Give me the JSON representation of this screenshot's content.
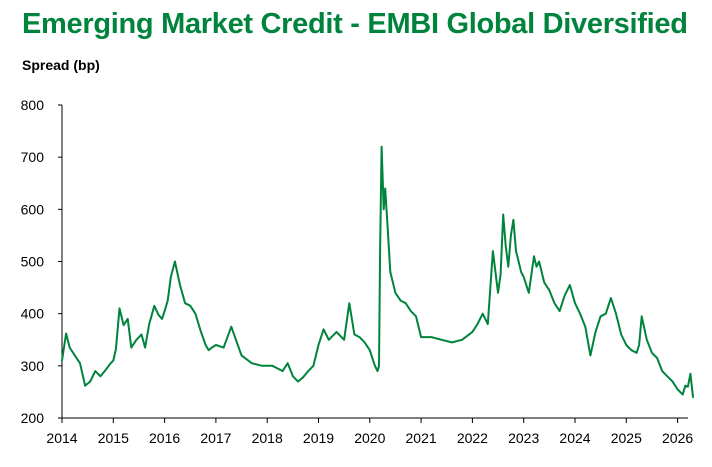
{
  "chart_data": {
    "type": "line",
    "title": "Emerging Market Credit - EMBI Global Diversified",
    "ylabel": "Spread (bp)",
    "xlabel": "",
    "xlim": [
      2014.0,
      2026.35
    ],
    "ylim": [
      200,
      800
    ],
    "yticks": [
      "200",
      "300",
      "400",
      "500",
      "600",
      "700",
      "800"
    ],
    "xticks": [
      "2014",
      "2015",
      "2016",
      "2017",
      "2018",
      "2019",
      "2020",
      "2021",
      "2022",
      "2023",
      "2024",
      "2025",
      "2026"
    ],
    "grid": false,
    "legend": "none",
    "series_color": "#00843D",
    "x": [
      2014.0,
      2014.08,
      2014.15,
      2014.25,
      2014.35,
      2014.45,
      2014.55,
      2014.65,
      2014.75,
      2014.85,
      2014.95,
      2015.0,
      2015.05,
      2015.12,
      2015.2,
      2015.28,
      2015.35,
      2015.45,
      2015.55,
      2015.62,
      2015.7,
      2015.8,
      2015.88,
      2015.95,
      2016.0,
      2016.06,
      2016.12,
      2016.2,
      2016.3,
      2016.4,
      2016.5,
      2016.6,
      2016.7,
      2016.8,
      2016.86,
      2016.92,
      2017.0,
      2017.15,
      2017.3,
      2017.5,
      2017.7,
      2017.9,
      2018.0,
      2018.1,
      2018.2,
      2018.3,
      2018.4,
      2018.5,
      2018.6,
      2018.7,
      2018.8,
      2018.9,
      2019.0,
      2019.1,
      2019.2,
      2019.35,
      2019.5,
      2019.6,
      2019.7,
      2019.8,
      2019.9,
      2020.0,
      2020.1,
      2020.15,
      2020.18,
      2020.2,
      2020.23,
      2020.27,
      2020.3,
      2020.35,
      2020.4,
      2020.5,
      2020.6,
      2020.7,
      2020.8,
      2020.9,
      2021.0,
      2021.2,
      2021.4,
      2021.6,
      2021.8,
      2022.0,
      2022.1,
      2022.2,
      2022.3,
      2022.4,
      2022.5,
      2022.55,
      2022.6,
      2022.65,
      2022.7,
      2022.75,
      2022.8,
      2022.85,
      2022.9,
      2022.95,
      2023.0,
      2023.1,
      2023.2,
      2023.25,
      2023.3,
      2023.4,
      2023.5,
      2023.6,
      2023.7,
      2023.8,
      2023.9,
      2024.0,
      2024.1,
      2024.2,
      2024.3,
      2024.4,
      2024.5,
      2024.6,
      2024.7,
      2024.8,
      2024.9,
      2025.0,
      2025.1,
      2025.2,
      2025.25,
      2025.3,
      2025.4,
      2025.5,
      2025.6,
      2025.7,
      2025.8,
      2025.9,
      2026.0,
      2026.1,
      2026.15,
      2026.2,
      2026.25,
      2026.3
    ],
    "y": [
      310,
      362,
      335,
      320,
      305,
      262,
      270,
      290,
      280,
      292,
      305,
      310,
      332,
      410,
      378,
      390,
      335,
      350,
      360,
      335,
      380,
      415,
      398,
      390,
      405,
      425,
      470,
      500,
      455,
      420,
      415,
      400,
      368,
      340,
      330,
      335,
      340,
      335,
      375,
      320,
      305,
      300,
      300,
      300,
      295,
      290,
      305,
      280,
      270,
      278,
      290,
      300,
      340,
      370,
      350,
      365,
      350,
      420,
      360,
      355,
      345,
      330,
      300,
      290,
      300,
      520,
      720,
      600,
      640,
      560,
      480,
      440,
      425,
      420,
      405,
      395,
      355,
      355,
      350,
      345,
      350,
      365,
      380,
      400,
      380,
      520,
      440,
      475,
      590,
      530,
      490,
      550,
      580,
      520,
      500,
      480,
      470,
      440,
      510,
      490,
      500,
      460,
      445,
      420,
      405,
      435,
      455,
      420,
      400,
      375,
      320,
      365,
      395,
      400,
      430,
      400,
      360,
      340,
      330,
      325,
      340,
      395,
      350,
      325,
      315,
      290,
      280,
      270,
      255,
      245,
      262,
      260,
      285,
      240
    ]
  }
}
